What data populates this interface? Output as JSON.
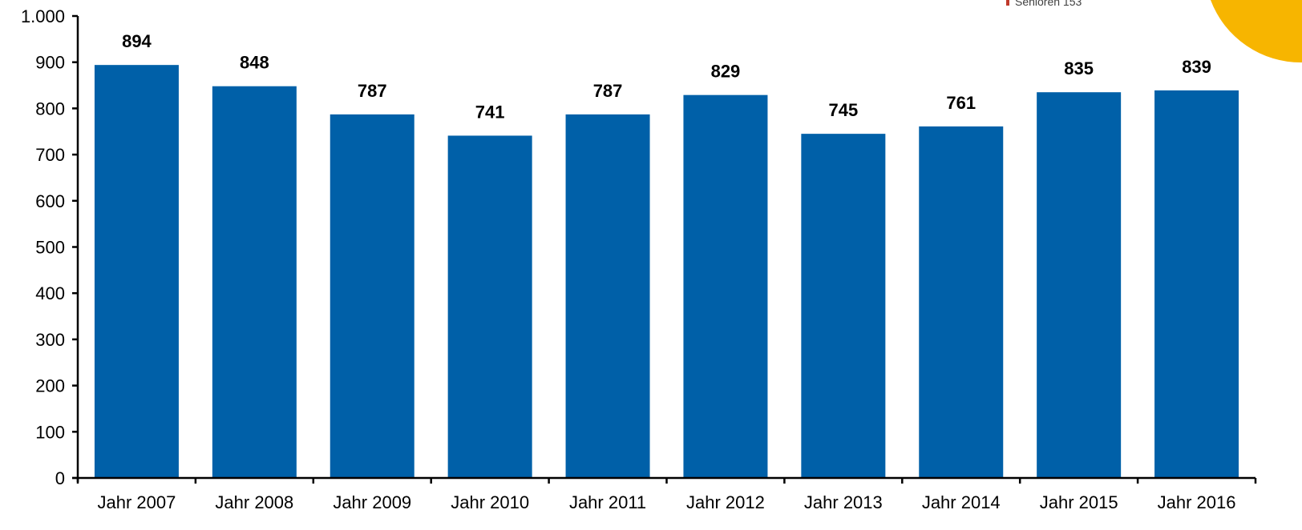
{
  "chart_data": {
    "type": "bar",
    "title": "",
    "xlabel": "",
    "ylabel": "",
    "categories": [
      "Jahr 2007",
      "Jahr 2008",
      "Jahr 2009",
      "Jahr 2010",
      "Jahr 2011",
      "Jahr 2012",
      "Jahr 2013",
      "Jahr 2014",
      "Jahr 2015",
      "Jahr 2016"
    ],
    "values": [
      894,
      848,
      787,
      741,
      787,
      829,
      745,
      761,
      835,
      839
    ],
    "data_labels": [
      "894",
      "848",
      "787",
      "741",
      "787",
      "829",
      "745",
      "761",
      "835",
      "839"
    ],
    "ylim": [
      0,
      1000
    ],
    "y_ticks": [
      0,
      100,
      200,
      300,
      400,
      500,
      600,
      700,
      800,
      900,
      1000
    ],
    "y_tick_labels": [
      "0",
      "100",
      "200",
      "300",
      "400",
      "500",
      "600",
      "700",
      "800",
      "900",
      "1.000"
    ],
    "grid": false,
    "bar_color": "#0060A8",
    "annotation": {
      "text": "Senioren 153",
      "marker_color": "#C0392B"
    },
    "decoration_color": "#F7B500"
  }
}
